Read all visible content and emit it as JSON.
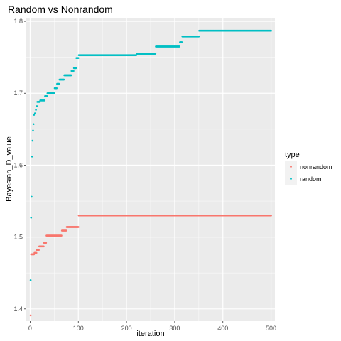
{
  "chart_data": {
    "type": "scatter",
    "title": "Random vs Nonrandom",
    "xlabel": "iteration",
    "ylabel": "Bayesian_D_value",
    "xlim": [
      -8,
      508
    ],
    "ylim": [
      1.383,
      1.805
    ],
    "x_ticks": [
      0,
      100,
      200,
      300,
      400,
      500
    ],
    "x_tick_labels": [
      "0",
      "100",
      "200",
      "300",
      "400",
      "500"
    ],
    "y_ticks": [
      1.4,
      1.5,
      1.6,
      1.7,
      1.8
    ],
    "y_tick_labels": [
      "1.4",
      "1.5",
      "1.6",
      "1.7",
      "1.8"
    ],
    "grid": true,
    "background": "#EBEBEB",
    "legend": {
      "title": "type",
      "position": "right",
      "entries": [
        {
          "label": "nonrandom",
          "color": "#F8766D"
        },
        {
          "label": "random",
          "color": "#00BFC4"
        }
      ]
    },
    "series": [
      {
        "name": "nonrandom",
        "color": "#F8766D",
        "points": [
          [
            1,
            1.391
          ],
          [
            2,
            1.476
          ]
        ],
        "steps": [
          {
            "x_start": 3,
            "x_end": 8,
            "y": 1.476
          },
          {
            "x_start": 9,
            "x_end": 13,
            "y": 1.478
          },
          {
            "x_start": 14,
            "x_end": 18,
            "y": 1.482
          },
          {
            "x_start": 19,
            "x_end": 28,
            "y": 1.487
          },
          {
            "x_start": 29,
            "x_end": 33,
            "y": 1.492
          },
          {
            "x_start": 34,
            "x_end": 65,
            "y": 1.502
          },
          {
            "x_start": 66,
            "x_end": 75,
            "y": 1.509
          },
          {
            "x_start": 76,
            "x_end": 100,
            "y": 1.514
          },
          {
            "x_start": 101,
            "x_end": 500,
            "y": 1.53
          }
        ]
      },
      {
        "name": "random",
        "color": "#00BFC4",
        "points": [
          [
            1,
            1.44
          ],
          [
            2,
            1.527
          ],
          [
            3,
            1.556
          ],
          [
            4,
            1.612
          ],
          [
            5,
            1.634
          ],
          [
            6,
            1.648
          ],
          [
            7,
            1.657
          ],
          [
            8,
            1.67
          ],
          [
            10,
            1.672
          ],
          [
            12,
            1.677
          ],
          [
            14,
            1.682
          ]
        ],
        "steps": [
          {
            "x_start": 15,
            "x_end": 20,
            "y": 1.688
          },
          {
            "x_start": 21,
            "x_end": 30,
            "y": 1.69
          },
          {
            "x_start": 31,
            "x_end": 35,
            "y": 1.696
          },
          {
            "x_start": 36,
            "x_end": 50,
            "y": 1.7
          },
          {
            "x_start": 51,
            "x_end": 55,
            "y": 1.707
          },
          {
            "x_start": 56,
            "x_end": 60,
            "y": 1.713
          },
          {
            "x_start": 61,
            "x_end": 70,
            "y": 1.719
          },
          {
            "x_start": 71,
            "x_end": 85,
            "y": 1.725
          },
          {
            "x_start": 86,
            "x_end": 90,
            "y": 1.731
          },
          {
            "x_start": 91,
            "x_end": 95,
            "y": 1.735
          },
          {
            "x_start": 96,
            "x_end": 100,
            "y": 1.749
          },
          {
            "x_start": 101,
            "x_end": 220,
            "y": 1.753
          },
          {
            "x_start": 221,
            "x_end": 260,
            "y": 1.755
          },
          {
            "x_start": 261,
            "x_end": 310,
            "y": 1.765
          },
          {
            "x_start": 311,
            "x_end": 315,
            "y": 1.771
          },
          {
            "x_start": 316,
            "x_end": 350,
            "y": 1.779
          },
          {
            "x_start": 351,
            "x_end": 500,
            "y": 1.787
          }
        ]
      }
    ]
  }
}
